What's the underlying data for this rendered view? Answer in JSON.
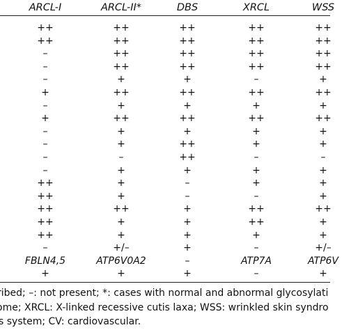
{
  "table": {
    "headers": [
      "ARCL-I",
      "ARCL-II*",
      "DBS",
      "XRCL",
      "WSS"
    ],
    "rows": [
      [
        "++",
        "++",
        "++",
        "++",
        "++"
      ],
      [
        "++",
        "++",
        "++",
        "++",
        "++"
      ],
      [
        "–",
        "++",
        "++",
        "++",
        "++"
      ],
      [
        "–",
        "++",
        "++",
        "++",
        "++"
      ],
      [
        "–",
        "+",
        "+",
        "–",
        "+"
      ],
      [
        "+",
        "++",
        "++",
        "++",
        "++"
      ],
      [
        "–",
        "+",
        "+",
        "+",
        "+"
      ],
      [
        "+",
        "++",
        "++",
        "++",
        "++"
      ],
      [
        "–",
        "+",
        "+",
        "+",
        "+"
      ],
      [
        "–",
        "+",
        "++",
        "+",
        "+"
      ],
      [
        "–",
        "–",
        "++",
        "–",
        "–"
      ],
      [
        "–",
        "+",
        "+",
        "+",
        "+"
      ],
      [
        "++",
        "+",
        "–",
        "+",
        "+"
      ],
      [
        "++",
        "+",
        "–",
        "–",
        "+"
      ],
      [
        "++",
        "++",
        "+",
        "++",
        "++"
      ],
      [
        "++",
        "+",
        "+",
        "++",
        "+"
      ],
      [
        "++",
        "+",
        "+",
        "+",
        "+"
      ],
      [
        "–",
        "+/–",
        "+",
        "–",
        "+/–"
      ],
      [
        "FBLN4,5",
        "ATP6V0A2",
        "–",
        "ATP7A",
        "ATP6V"
      ],
      [
        "+",
        "+",
        "+",
        "–",
        "+"
      ]
    ]
  },
  "footnotes": [
    "ribed; –: not present; *: cases with normal and abnormal glycosylati",
    "ome; XRCL: X-linked recessive cutis laxa; WSS: wrinkled skin syndro",
    "s system; CV: cardiovascular."
  ]
}
